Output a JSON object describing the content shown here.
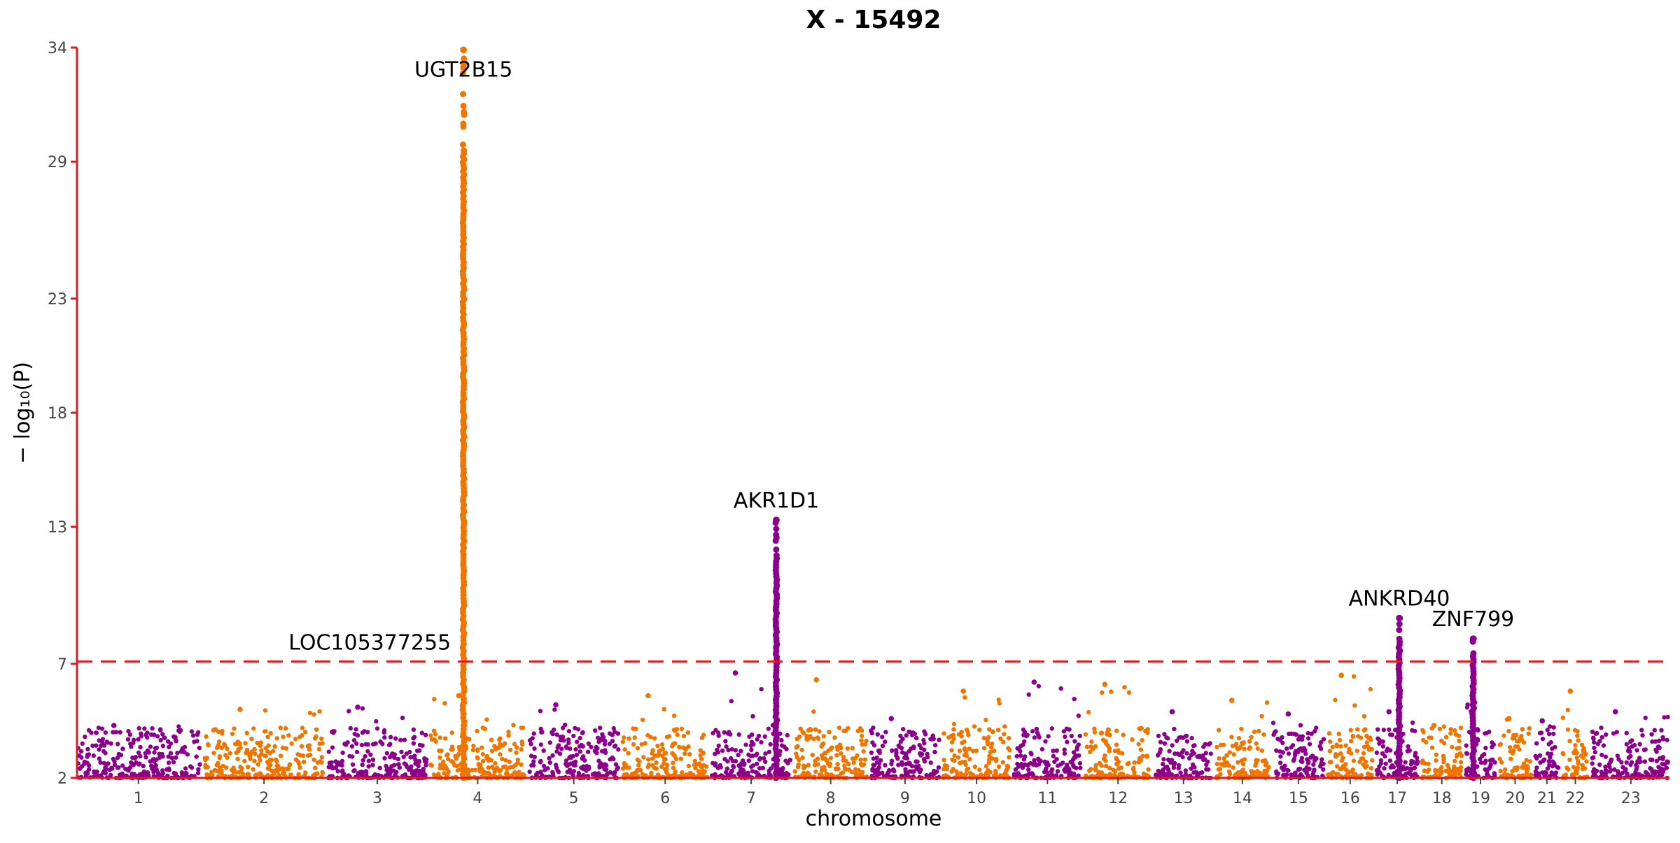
{
  "chart_data": {
    "type": "scatter",
    "subtype": "manhattan",
    "title": "X - 15492",
    "xlabel": "chromosome",
    "ylabel": "− log₁₀(P)",
    "ylim": [
      2,
      34
    ],
    "yticks": [
      2,
      7,
      13,
      18,
      23,
      29,
      34
    ],
    "significance_threshold": 7.1,
    "threshold_line": "dashed",
    "grid": false,
    "legend": "none",
    "colors": {
      "odd_chromosomes": "#8b008b",
      "even_chromosomes": "#ee7600",
      "threshold": "#e31a1c",
      "axis": "#e31a1c"
    },
    "chromosomes": [
      {
        "label": "1",
        "rel_size": 248,
        "peak_bg": 4.3
      },
      {
        "label": "2",
        "rel_size": 242,
        "peak_bg": 5.0
      },
      {
        "label": "3",
        "rel_size": 198,
        "peak_bg": 5.1
      },
      {
        "label": "4",
        "rel_size": 190,
        "peak_bg": 5.6
      },
      {
        "label": "5",
        "rel_size": 181,
        "peak_bg": 5.2
      },
      {
        "label": "6",
        "rel_size": 171,
        "peak_bg": 5.6
      },
      {
        "label": "7",
        "rel_size": 159,
        "peak_bg": 6.6
      },
      {
        "label": "8",
        "rel_size": 145,
        "peak_bg": 6.3
      },
      {
        "label": "9",
        "rel_size": 138,
        "peak_bg": 4.6
      },
      {
        "label": "10",
        "rel_size": 134,
        "peak_bg": 5.8
      },
      {
        "label": "11",
        "rel_size": 135,
        "peak_bg": 6.2
      },
      {
        "label": "12",
        "rel_size": 133,
        "peak_bg": 6.1
      },
      {
        "label": "13",
        "rel_size": 114,
        "peak_bg": 4.9
      },
      {
        "label": "14",
        "rel_size": 107,
        "peak_bg": 5.4
      },
      {
        "label": "15",
        "rel_size": 102,
        "peak_bg": 4.8
      },
      {
        "label": "16",
        "rel_size": 90,
        "peak_bg": 6.5
      },
      {
        "label": "17",
        "rel_size": 83,
        "peak_bg": 4.9
      },
      {
        "label": "18",
        "rel_size": 80,
        "peak_bg": 4.3
      },
      {
        "label": "19",
        "rel_size": 59,
        "peak_bg": 5.3
      },
      {
        "label": "20",
        "rel_size": 64,
        "peak_bg": 4.6
      },
      {
        "label": "21",
        "rel_size": 47,
        "peak_bg": 4.5
      },
      {
        "label": "22",
        "rel_size": 51,
        "peak_bg": 5.8
      },
      {
        "label": "23",
        "rel_size": 156,
        "peak_bg": 4.9
      }
    ],
    "peaks": [
      {
        "gene": "UGT2B15",
        "chromosome": "4",
        "position": 0.35,
        "top": 33.9,
        "label_side": "below"
      },
      {
        "gene": "AKR1D1",
        "chromosome": "7",
        "position": 0.82,
        "top": 13.3,
        "label_side": "above"
      },
      {
        "gene": "ANKRD40",
        "chromosome": "17",
        "position": 0.55,
        "top": 9.0,
        "label_side": "above"
      },
      {
        "gene": "ZNF799",
        "chromosome": "19",
        "position": 0.25,
        "top": 8.1,
        "label_side": "above"
      },
      {
        "gene": "LOC105377255",
        "chromosome": "4",
        "position": 0.35,
        "top": 7.2,
        "label_side": "left"
      }
    ]
  }
}
